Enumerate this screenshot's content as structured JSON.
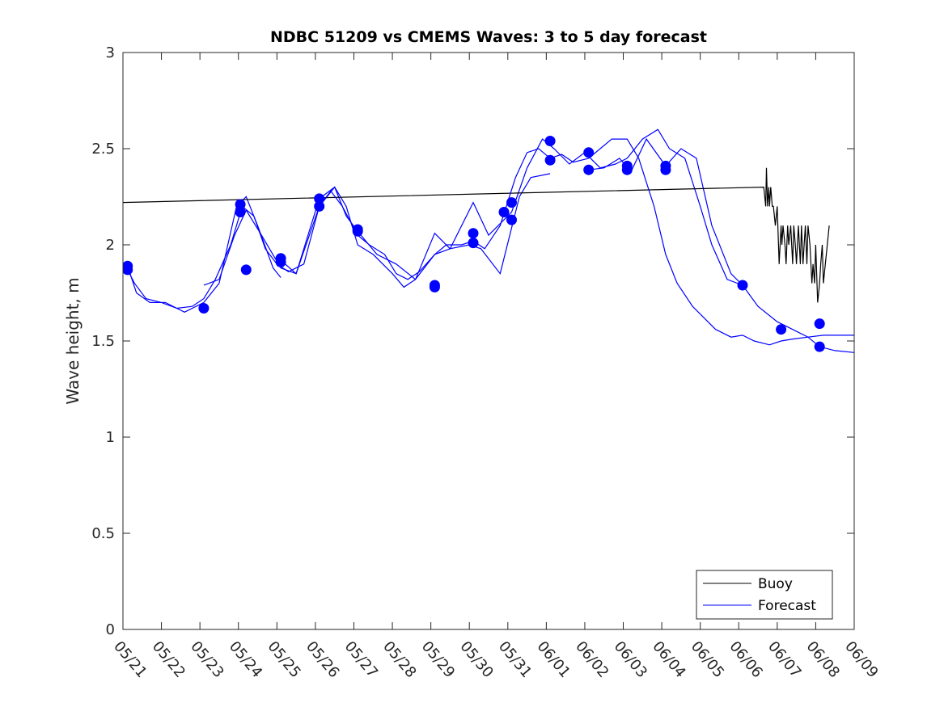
{
  "chart_data": {
    "type": "line",
    "title": "NDBC 51209 vs CMEMS Waves: 3 to 5 day forecast",
    "xlabel": "",
    "ylabel": "Wave height, m",
    "ylim": [
      0,
      3
    ],
    "xlim": [
      "05/21",
      "06/09"
    ],
    "x_ticks": [
      "05/21",
      "05/22",
      "05/23",
      "05/24",
      "05/25",
      "05/26",
      "05/27",
      "05/28",
      "05/29",
      "05/30",
      "05/31",
      "06/01",
      "06/02",
      "06/03",
      "06/04",
      "06/05",
      "06/06",
      "06/07",
      "06/08",
      "06/09"
    ],
    "y_ticks": [
      "0",
      "0.5",
      "1",
      "1.5",
      "2",
      "2.5",
      "3"
    ],
    "grid": false,
    "legend": {
      "placement": "bottom-right",
      "entries": [
        "Buoy",
        "Forecast"
      ]
    },
    "colors": {
      "buoy": "#000000",
      "forecast": "#0000ff",
      "axes": "#262626"
    },
    "series": [
      {
        "name": "Buoy",
        "x_unit": "days since 05/21",
        "x": [
          0.0,
          16.65,
          16.7,
          16.72,
          16.75,
          16.78,
          16.8,
          16.83,
          16.87,
          16.9,
          16.95,
          17.0,
          17.05,
          17.1,
          17.12,
          17.15,
          17.2,
          17.23,
          17.27,
          17.3,
          17.35,
          17.4,
          17.43,
          17.47,
          17.5,
          17.55,
          17.6,
          17.63,
          17.67,
          17.7,
          17.73,
          17.77,
          17.8,
          17.85,
          17.9,
          17.93,
          17.97,
          18.0,
          18.05,
          18.1,
          18.13,
          18.17,
          18.2,
          18.25,
          18.3,
          18.35
        ],
        "values": [
          2.22,
          2.3,
          2.2,
          2.4,
          2.2,
          2.3,
          2.2,
          2.3,
          2.2,
          2.2,
          2.1,
          2.2,
          1.9,
          2.1,
          2.0,
          2.1,
          2.0,
          1.9,
          2.1,
          2.0,
          2.1,
          1.9,
          2.1,
          2.0,
          1.9,
          2.1,
          1.9,
          2.1,
          1.9,
          2.0,
          2.1,
          1.9,
          2.1,
          2.0,
          1.8,
          1.9,
          1.8,
          2.0,
          1.7,
          1.8,
          1.9,
          2.0,
          1.8,
          1.9,
          2.0,
          2.1
        ]
      },
      {
        "name": "Forecast",
        "x_unit": "days since 05/21",
        "x": [
          0.12,
          0.3,
          0.6,
          1.0,
          1.4,
          1.8,
          2.1,
          2.4,
          2.8,
          3.1,
          3.4,
          3.7,
          4.0,
          4.3,
          4.7,
          5.1,
          5.4,
          5.7,
          6.1,
          6.4,
          6.8,
          7.1,
          7.4,
          7.7,
          8.1,
          8.4,
          8.8,
          9.1,
          9.4,
          9.8,
          10.2,
          10.5,
          10.8,
          11.1,
          11.4,
          11.7,
          12.1,
          12.4,
          12.7,
          13.1,
          13.4,
          13.8,
          14.1,
          14.4,
          14.8,
          15.1,
          15.4,
          15.8,
          16.1,
          16.4,
          16.8,
          17.1,
          17.4,
          17.8,
          18.2,
          18.6,
          19.0
        ],
        "values": [
          1.87,
          1.8,
          1.72,
          1.7,
          1.67,
          1.68,
          1.72,
          1.82,
          2.0,
          2.2,
          2.15,
          1.98,
          1.9,
          1.86,
          1.9,
          2.2,
          2.28,
          2.2,
          2.05,
          2.0,
          1.95,
          1.85,
          1.82,
          1.86,
          1.95,
          2.0,
          2.0,
          2.02,
          1.98,
          2.1,
          2.35,
          2.48,
          2.5,
          2.45,
          2.47,
          2.43,
          2.45,
          2.5,
          2.55,
          2.55,
          2.45,
          2.2,
          1.95,
          1.8,
          1.68,
          1.62,
          1.56,
          1.52,
          1.53,
          1.5,
          1.48,
          1.5,
          1.51,
          1.52,
          1.53,
          1.53,
          1.53
        ]
      }
    ],
    "forecast_runs": [
      {
        "x": [
          0.12,
          0.35,
          0.7,
          1.1,
          1.6,
          2.1,
          2.5,
          2.95,
          3.2,
          3.5,
          3.9,
          4.1
        ],
        "values": [
          1.89,
          1.75,
          1.7,
          1.7,
          1.65,
          1.7,
          1.8,
          2.2,
          2.25,
          2.1,
          1.88,
          1.83
        ]
      },
      {
        "x": [
          2.1,
          2.5,
          2.9,
          3.2,
          3.6,
          4.1,
          4.5,
          5.1,
          5.5,
          5.8,
          6.1,
          6.5,
          7.0,
          7.3,
          7.6,
          8.1,
          8.5,
          9.0,
          9.3,
          9.8,
          10.3,
          10.6,
          11.1
        ],
        "values": [
          1.79,
          1.82,
          2.05,
          2.18,
          2.05,
          1.88,
          1.85,
          2.2,
          2.3,
          2.2,
          2.0,
          1.95,
          1.85,
          1.78,
          1.82,
          1.95,
          1.98,
          2.0,
          1.98,
          1.85,
          2.25,
          2.35,
          2.37
        ]
      },
      {
        "x": [
          4.1,
          4.5,
          5.1,
          5.5,
          5.8,
          6.1,
          6.6,
          7.1,
          7.6,
          8.1,
          8.5,
          9.1,
          9.5,
          10.1,
          10.5,
          10.9,
          11.2,
          11.6,
          12.0,
          12.4,
          12.8,
          13.1,
          13.5,
          13.9,
          14.2,
          14.6,
          15.0,
          15.3,
          15.7,
          16.1
        ],
        "values": [
          1.92,
          1.85,
          2.24,
          2.3,
          2.15,
          2.07,
          1.95,
          1.9,
          1.82,
          2.06,
          1.98,
          2.22,
          2.05,
          2.17,
          2.4,
          2.55,
          2.5,
          2.42,
          2.48,
          2.4,
          2.42,
          2.45,
          2.55,
          2.6,
          2.5,
          2.45,
          2.2,
          2.0,
          1.82,
          1.79
        ]
      },
      {
        "x": [
          12.1,
          12.5,
          12.9,
          13.2,
          13.6,
          14.1,
          14.5,
          14.9,
          15.3,
          15.8,
          16.1,
          16.5,
          17.0,
          17.4,
          17.8,
          18.1,
          18.5,
          19.0
        ],
        "values": [
          2.39,
          2.4,
          2.45,
          2.38,
          2.55,
          2.41,
          2.5,
          2.45,
          2.1,
          1.85,
          1.79,
          1.68,
          1.6,
          1.56,
          1.52,
          1.47,
          1.45,
          1.44
        ]
      }
    ],
    "markers": {
      "x": [
        0.12,
        0.12,
        2.1,
        3.1,
        3.1,
        4.1,
        4.1,
        5.1,
        5.1,
        6.1,
        6.1,
        8.1,
        8.1,
        9.1,
        9.1,
        10.1,
        10.1,
        10.1,
        11.1,
        11.1,
        12.1,
        12.1,
        13.1,
        13.1,
        14.1,
        14.1,
        16.1,
        17.1,
        18.1,
        18.1,
        2.1
      ],
      "values": [
        1.89,
        1.87,
        1.67,
        2.21,
        2.17,
        1.93,
        1.91,
        2.24,
        2.2,
        2.08,
        2.07,
        1.79,
        1.78,
        2.06,
        2.01,
        2.22,
        2.13,
        2.17,
        2.54,
        2.44,
        2.48,
        2.39,
        2.41,
        2.39,
        2.41,
        2.39,
        1.79,
        1.56,
        1.59,
        1.47,
        1.87
      ],
      "marker_x_shift": [
        0,
        0,
        0,
        -0.05,
        -0.05,
        0,
        0,
        0,
        0,
        0,
        0,
        0,
        0,
        0,
        0,
        0,
        0,
        -0.2,
        0,
        0,
        0,
        0,
        0,
        0,
        0,
        0,
        0,
        0,
        0,
        0,
        1.1
      ]
    }
  }
}
